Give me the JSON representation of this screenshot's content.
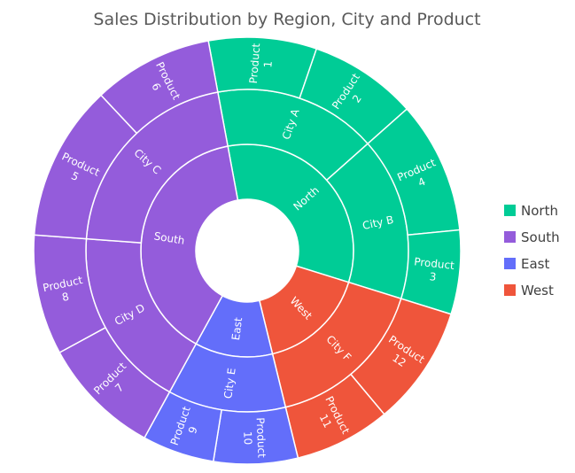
{
  "chart_data": {
    "type": "sunburst",
    "title": "Sales Distribution by Region, City and Product",
    "legend_position": "right",
    "colors": {
      "North": "#00CC96",
      "South": "#945CDB",
      "East": "#636EFA",
      "West": "#EF553B"
    },
    "regions": [
      {
        "name": "North",
        "value": 18,
        "cities": [
          {
            "name": "City A",
            "value": 9,
            "products": [
              {
                "name": "Product 1",
                "value": 4.5
              },
              {
                "name": "Product 2",
                "value": 4.5
              }
            ]
          },
          {
            "name": "City B",
            "value": 9,
            "products": [
              {
                "name": "Product 4",
                "value": 5.5
              },
              {
                "name": "Product 3",
                "value": 3.5
              }
            ]
          }
        ]
      },
      {
        "name": "West",
        "value": 9,
        "cities": [
          {
            "name": "City F",
            "value": 9,
            "products": [
              {
                "name": "Product 12",
                "value": 5
              },
              {
                "name": "Product 11",
                "value": 4
              }
            ]
          }
        ]
      },
      {
        "name": "East",
        "value": 6.5,
        "cities": [
          {
            "name": "City E",
            "value": 6.5,
            "products": [
              {
                "name": "Product 10",
                "value": 3.5
              },
              {
                "name": "Product 9",
                "value": 3
              }
            ]
          }
        ]
      },
      {
        "name": "South",
        "value": 21.5,
        "cities": [
          {
            "name": "City D",
            "value": 10,
            "products": [
              {
                "name": "Product 7",
                "value": 5
              },
              {
                "name": "Product 8",
                "value": 5
              }
            ]
          },
          {
            "name": "City C",
            "value": 11.5,
            "products": [
              {
                "name": "Product 5",
                "value": 6.5
              },
              {
                "name": "Product 6",
                "value": 5
              }
            ]
          }
        ]
      }
    ],
    "legend": [
      "North",
      "South",
      "East",
      "West"
    ]
  }
}
